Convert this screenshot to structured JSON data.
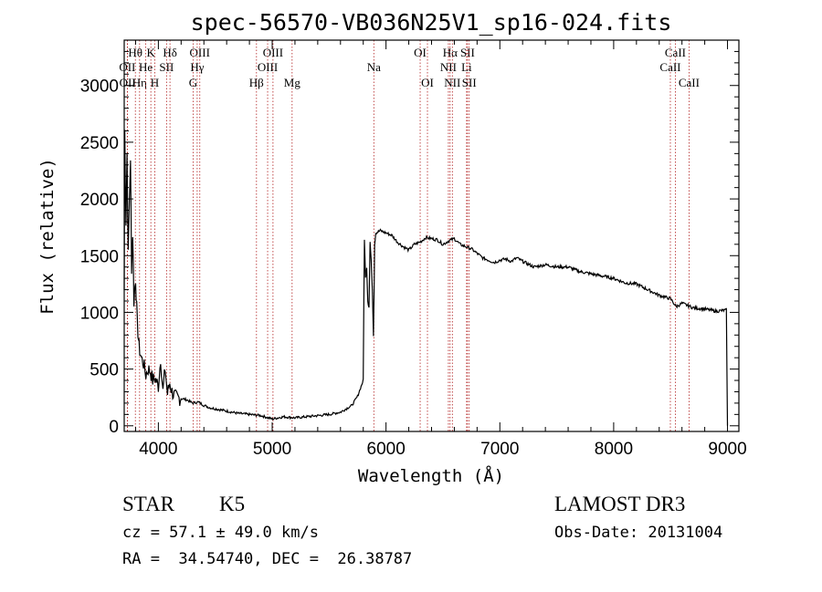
{
  "chart_data": {
    "type": "line",
    "title": "spec-56570-VB036N25V1_sp16-024.fits",
    "xlabel": "Wavelength (Å)",
    "ylabel": "Flux (relative)",
    "xlim": [
      3700,
      9100
    ],
    "ylim": [
      -50,
      3400
    ],
    "x_ticks": [
      4000,
      5000,
      6000,
      7000,
      8000,
      9000
    ],
    "y_ticks": [
      0,
      500,
      1000,
      1500,
      2000,
      2500,
      3000
    ],
    "series": [
      {
        "name": "spectrum",
        "x": [
          3700,
          3705,
          3715,
          3725,
          3735,
          3745,
          3755,
          3765,
          3775,
          3785,
          3800,
          3815,
          3830,
          3850,
          3870,
          3890,
          3910,
          3930,
          3950,
          3970,
          4000,
          4020,
          4040,
          4060,
          4080,
          4100,
          4120,
          4150,
          4200,
          4250,
          4300,
          4350,
          4400,
          4450,
          4500,
          4600,
          4700,
          4800,
          4900,
          5000,
          5100,
          5200,
          5300,
          5400,
          5500,
          5600,
          5700,
          5750,
          5800,
          5810,
          5820,
          5830,
          5840,
          5850,
          5860,
          5870,
          5880,
          5890,
          5900,
          5910,
          5950,
          6000,
          6050,
          6100,
          6150,
          6200,
          6250,
          6300,
          6350,
          6400,
          6450,
          6500,
          6550,
          6600,
          6650,
          6700,
          6750,
          6800,
          6850,
          6900,
          6950,
          7000,
          7050,
          7100,
          7150,
          7200,
          7300,
          7400,
          7500,
          7600,
          7700,
          7800,
          7900,
          8000,
          8100,
          8200,
          8300,
          8400,
          8500,
          8550,
          8600,
          8700,
          8800,
          8900,
          8990,
          9000
        ],
        "y": [
          1200,
          2600,
          1800,
          2400,
          1500,
          2000,
          2300,
          1400,
          1700,
          1100,
          1300,
          900,
          700,
          600,
          550,
          450,
          500,
          480,
          400,
          420,
          350,
          600,
          300,
          500,
          280,
          380,
          300,
          250,
          240,
          230,
          200,
          210,
          180,
          160,
          150,
          130,
          110,
          100,
          90,
          60,
          80,
          70,
          80,
          90,
          100,
          120,
          180,
          260,
          400,
          1650,
          1300,
          1400,
          1100,
          1050,
          1620,
          1450,
          1200,
          800,
          1600,
          1700,
          1720,
          1700,
          1680,
          1620,
          1580,
          1550,
          1600,
          1620,
          1660,
          1650,
          1640,
          1600,
          1630,
          1650,
          1600,
          1580,
          1560,
          1520,
          1480,
          1460,
          1440,
          1460,
          1470,
          1450,
          1480,
          1450,
          1400,
          1420,
          1400,
          1400,
          1360,
          1340,
          1320,
          1300,
          1260,
          1250,
          1200,
          1150,
          1120,
          1050,
          1080,
          1040,
          1030,
          1010,
          1020,
          0
        ]
      }
    ],
    "line_markers": [
      {
        "label": "Hθ",
        "wavelength": 3798,
        "row": 1
      },
      {
        "label": "OII",
        "wavelength": 3727,
        "row": 2
      },
      {
        "label": "OII",
        "wavelength": 3729,
        "row": 3
      },
      {
        "label": "Hη",
        "wavelength": 3835,
        "row": 3
      },
      {
        "label": "He",
        "wavelength": 3889,
        "row": 2
      },
      {
        "label": "K",
        "wavelength": 3934,
        "row": 1
      },
      {
        "label": "H",
        "wavelength": 3968,
        "row": 3
      },
      {
        "label": "SII",
        "wavelength": 4072,
        "row": 2
      },
      {
        "label": "Hδ",
        "wavelength": 4102,
        "row": 1
      },
      {
        "label": "OIII",
        "wavelength": 4364,
        "row": 1
      },
      {
        "label": "Hγ",
        "wavelength": 4341,
        "row": 2
      },
      {
        "label": "G",
        "wavelength": 4305,
        "row": 3
      },
      {
        "label": "Hβ",
        "wavelength": 4862,
        "row": 3
      },
      {
        "label": "OIII",
        "wavelength": 5007,
        "row": 1
      },
      {
        "label": "OIII",
        "wavelength": 4960,
        "row": 2
      },
      {
        "label": "Mg",
        "wavelength": 5175,
        "row": 3
      },
      {
        "label": "Na",
        "wavelength": 5893,
        "row": 2
      },
      {
        "label": "OI",
        "wavelength": 6300,
        "row": 1
      },
      {
        "label": "OI",
        "wavelength": 6364,
        "row": 3
      },
      {
        "label": "Hα",
        "wavelength": 6563,
        "row": 1
      },
      {
        "label": "NII",
        "wavelength": 6548,
        "row": 2
      },
      {
        "label": "NII",
        "wavelength": 6583,
        "row": 3
      },
      {
        "label": "SII",
        "wavelength": 6716,
        "row": 1
      },
      {
        "label": "Li",
        "wavelength": 6708,
        "row": 2
      },
      {
        "label": "SII",
        "wavelength": 6731,
        "row": 3
      },
      {
        "label": "CaII",
        "wavelength": 8542,
        "row": 1
      },
      {
        "label": "CaII",
        "wavelength": 8498,
        "row": 2
      },
      {
        "label": "CaII",
        "wavelength": 8662,
        "row": 3
      }
    ]
  },
  "info": {
    "object_class": "STAR",
    "subclass": "K5",
    "survey": "LAMOST DR3",
    "cz": "cz = 57.1 ± 49.0 km/s",
    "obs_date": "Obs-Date: 20131004",
    "radec": "RA =  34.54740, DEC =  26.38787"
  },
  "colors": {
    "spectrum": "#000000",
    "marker": "#b22222",
    "axes": "#000000"
  }
}
